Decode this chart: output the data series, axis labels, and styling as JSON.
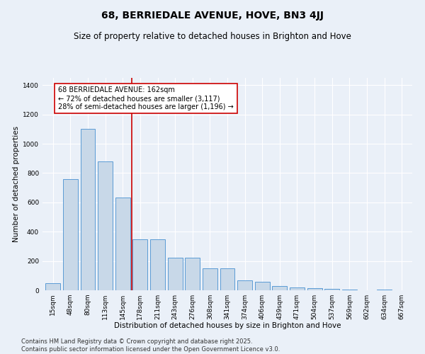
{
  "title": "68, BERRIEDALE AVENUE, HOVE, BN3 4JJ",
  "subtitle": "Size of property relative to detached houses in Brighton and Hove",
  "xlabel": "Distribution of detached houses by size in Brighton and Hove",
  "ylabel": "Number of detached properties",
  "categories": [
    "15sqm",
    "48sqm",
    "80sqm",
    "113sqm",
    "145sqm",
    "178sqm",
    "211sqm",
    "243sqm",
    "276sqm",
    "308sqm",
    "341sqm",
    "374sqm",
    "406sqm",
    "439sqm",
    "471sqm",
    "504sqm",
    "537sqm",
    "569sqm",
    "602sqm",
    "634sqm",
    "667sqm"
  ],
  "values": [
    50,
    760,
    1100,
    880,
    635,
    350,
    350,
    220,
    220,
    150,
    150,
    70,
    60,
    30,
    20,
    15,
    8,
    5,
    2,
    5,
    2
  ],
  "bar_color": "#c8d8e8",
  "bar_edge_color": "#5b9bd5",
  "bar_width": 0.85,
  "vline_x": 4.5,
  "vline_color": "#cc0000",
  "annotation_text": "68 BERRIEDALE AVENUE: 162sqm\n← 72% of detached houses are smaller (3,117)\n28% of semi-detached houses are larger (1,196) →",
  "annotation_box_color": "#ffffff",
  "annotation_box_edge": "#cc0000",
  "ylim": [
    0,
    1450
  ],
  "yticks": [
    0,
    200,
    400,
    600,
    800,
    1000,
    1200,
    1400
  ],
  "background_color": "#eaf0f8",
  "plot_background": "#eaf0f8",
  "grid_color": "#ffffff",
  "footer_line1": "Contains HM Land Registry data © Crown copyright and database right 2025.",
  "footer_line2": "Contains public sector information licensed under the Open Government Licence v3.0.",
  "title_fontsize": 10,
  "subtitle_fontsize": 8.5,
  "axis_label_fontsize": 7.5,
  "tick_fontsize": 6.5,
  "annotation_fontsize": 7,
  "footer_fontsize": 6
}
